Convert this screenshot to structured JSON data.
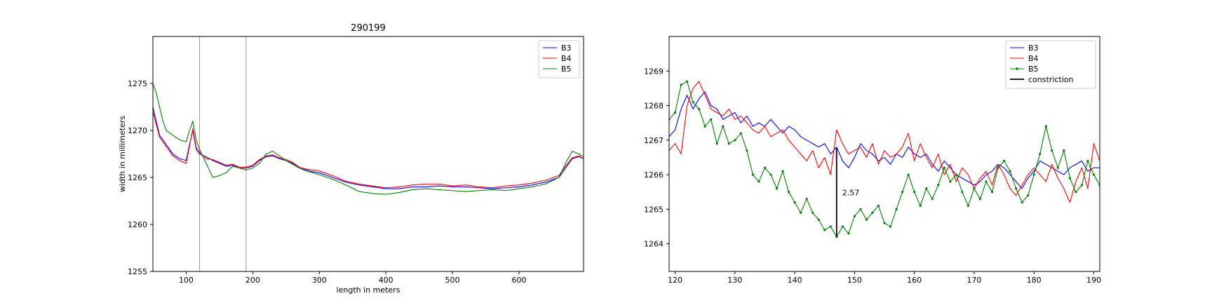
{
  "chart_data": [
    {
      "type": "line",
      "title": "290199",
      "xlabel": "length in meters",
      "ylabel": "width in millimeters",
      "xlim": [
        50,
        697
      ],
      "ylim": [
        1255,
        1280
      ],
      "xticks": [
        100,
        200,
        300,
        400,
        500,
        600
      ],
      "yticks": [
        1255,
        1260,
        1265,
        1270,
        1275
      ],
      "grid": false,
      "legend_position": "top-right",
      "vlines": [
        120,
        190
      ],
      "series": [
        {
          "name": "B3",
          "color": "#0000ff",
          "x": [
            50,
            60,
            70,
            80,
            90,
            100,
            105,
            110,
            115,
            120,
            130,
            140,
            150,
            160,
            170,
            180,
            190,
            200,
            210,
            220,
            230,
            240,
            250,
            260,
            270,
            280,
            290,
            300,
            320,
            340,
            360,
            380,
            400,
            420,
            440,
            460,
            480,
            500,
            520,
            540,
            560,
            580,
            600,
            620,
            640,
            660,
            670,
            680,
            690,
            697
          ],
          "values": [
            1272.5,
            1269.5,
            1268.5,
            1267.5,
            1267.0,
            1266.8,
            1268.5,
            1270.0,
            1268.0,
            1267.5,
            1267.2,
            1266.8,
            1266.5,
            1266.2,
            1266.3,
            1266.0,
            1266.0,
            1266.2,
            1266.8,
            1267.2,
            1267.3,
            1267.0,
            1266.8,
            1266.5,
            1266.0,
            1265.8,
            1265.6,
            1265.5,
            1265.0,
            1264.5,
            1264.2,
            1264.0,
            1263.8,
            1263.8,
            1264.0,
            1264.0,
            1264.1,
            1264.0,
            1264.0,
            1263.9,
            1263.8,
            1263.9,
            1264.0,
            1264.2,
            1264.5,
            1265.0,
            1266.0,
            1267.0,
            1267.2,
            1267.0
          ]
        },
        {
          "name": "B4",
          "color": "#ff0000",
          "x": [
            50,
            60,
            70,
            80,
            90,
            100,
            105,
            110,
            115,
            120,
            130,
            140,
            150,
            160,
            170,
            180,
            190,
            200,
            210,
            220,
            230,
            240,
            250,
            260,
            270,
            280,
            290,
            300,
            320,
            340,
            360,
            380,
            400,
            420,
            440,
            460,
            480,
            500,
            520,
            540,
            560,
            580,
            600,
            620,
            640,
            660,
            670,
            680,
            690,
            697
          ],
          "values": [
            1272.0,
            1269.3,
            1268.3,
            1267.3,
            1266.8,
            1266.5,
            1268.3,
            1270.2,
            1268.2,
            1267.7,
            1267.0,
            1266.9,
            1266.6,
            1266.3,
            1266.4,
            1266.1,
            1266.1,
            1266.3,
            1266.9,
            1267.3,
            1267.4,
            1267.1,
            1266.9,
            1266.6,
            1266.1,
            1265.9,
            1265.8,
            1265.7,
            1265.2,
            1264.6,
            1264.3,
            1264.1,
            1263.9,
            1264.0,
            1264.2,
            1264.3,
            1264.3,
            1264.1,
            1264.2,
            1264.0,
            1263.9,
            1264.1,
            1264.2,
            1264.4,
            1264.7,
            1265.2,
            1266.2,
            1267.1,
            1267.3,
            1267.0
          ]
        },
        {
          "name": "B5",
          "color": "#008000",
          "x": [
            50,
            55,
            60,
            65,
            70,
            80,
            90,
            100,
            105,
            110,
            115,
            120,
            130,
            140,
            150,
            160,
            170,
            180,
            190,
            200,
            210,
            220,
            230,
            240,
            250,
            260,
            270,
            280,
            290,
            300,
            320,
            340,
            360,
            380,
            400,
            420,
            440,
            460,
            480,
            500,
            520,
            540,
            560,
            580,
            600,
            620,
            640,
            660,
            670,
            680,
            690,
            697
          ],
          "values": [
            1275.0,
            1274.0,
            1272.5,
            1271.0,
            1270.0,
            1269.5,
            1269.0,
            1268.8,
            1270.0,
            1271.0,
            1269.0,
            1268.0,
            1266.5,
            1265.0,
            1265.2,
            1265.5,
            1266.2,
            1266.0,
            1265.8,
            1266.0,
            1266.5,
            1267.5,
            1267.8,
            1267.3,
            1266.8,
            1266.4,
            1266.0,
            1265.7,
            1265.5,
            1265.3,
            1264.8,
            1264.2,
            1263.5,
            1263.3,
            1263.2,
            1263.4,
            1263.7,
            1263.8,
            1263.7,
            1263.6,
            1263.5,
            1263.6,
            1263.7,
            1263.6,
            1263.8,
            1264.0,
            1264.3,
            1265.0,
            1266.5,
            1267.8,
            1267.5,
            1267.2
          ]
        }
      ]
    },
    {
      "type": "line",
      "xlim": [
        119,
        191
      ],
      "ylim": [
        1263.2,
        1270.0
      ],
      "xticks": [
        120,
        130,
        140,
        150,
        160,
        170,
        180,
        190
      ],
      "yticks": [
        1264,
        1265,
        1266,
        1267,
        1268,
        1269
      ],
      "grid": false,
      "legend_position": "top-right",
      "constriction": {
        "x": 147,
        "y_from": 1264.2,
        "y_to": 1266.77,
        "label": "2.57",
        "color": "#000000"
      },
      "series": [
        {
          "name": "B3",
          "color": "#0000ff",
          "markers": false,
          "x": [
            119,
            120,
            121,
            122,
            123,
            124,
            125,
            126,
            127,
            128,
            129,
            130,
            131,
            132,
            133,
            134,
            135,
            136,
            137,
            138,
            139,
            140,
            141,
            142,
            143,
            144,
            145,
            146,
            147,
            148,
            149,
            150,
            151,
            152,
            153,
            154,
            155,
            156,
            157,
            158,
            159,
            160,
            161,
            162,
            163,
            164,
            165,
            166,
            167,
            168,
            169,
            170,
            171,
            172,
            173,
            174,
            175,
            176,
            177,
            178,
            179,
            180,
            181,
            182,
            183,
            184,
            185,
            186,
            187,
            188,
            189,
            190,
            191
          ],
          "values": [
            1267.1,
            1267.3,
            1267.9,
            1268.3,
            1267.9,
            1268.2,
            1268.4,
            1268.0,
            1267.9,
            1267.6,
            1267.7,
            1267.8,
            1267.5,
            1267.7,
            1267.4,
            1267.5,
            1267.4,
            1267.6,
            1267.4,
            1267.2,
            1267.4,
            1267.3,
            1267.1,
            1267.0,
            1266.9,
            1266.8,
            1266.9,
            1266.6,
            1266.8,
            1266.4,
            1266.2,
            1266.5,
            1266.9,
            1266.7,
            1266.6,
            1266.4,
            1266.5,
            1266.3,
            1266.6,
            1266.5,
            1266.8,
            1266.6,
            1266.5,
            1266.6,
            1266.3,
            1266.1,
            1266.4,
            1266.2,
            1266.0,
            1265.9,
            1265.8,
            1265.7,
            1265.8,
            1266.0,
            1266.1,
            1266.3,
            1266.2,
            1266.0,
            1265.8,
            1265.6,
            1265.9,
            1266.1,
            1266.4,
            1266.3,
            1266.2,
            1266.1,
            1266.0,
            1266.2,
            1266.3,
            1266.4,
            1266.1,
            1266.2,
            1266.2
          ]
        },
        {
          "name": "B4",
          "color": "#ff0000",
          "markers": false,
          "x": [
            119,
            120,
            121,
            122,
            123,
            124,
            125,
            126,
            127,
            128,
            129,
            130,
            131,
            132,
            133,
            134,
            135,
            136,
            137,
            138,
            139,
            140,
            141,
            142,
            143,
            144,
            145,
            146,
            147,
            148,
            149,
            150,
            151,
            152,
            153,
            154,
            155,
            156,
            157,
            158,
            159,
            160,
            161,
            162,
            163,
            164,
            165,
            166,
            167,
            168,
            169,
            170,
            171,
            172,
            173,
            174,
            175,
            176,
            177,
            178,
            179,
            180,
            181,
            182,
            183,
            184,
            185,
            186,
            187,
            188,
            189,
            190,
            191
          ],
          "values": [
            1266.7,
            1266.9,
            1266.6,
            1268.0,
            1268.5,
            1268.7,
            1268.3,
            1267.9,
            1267.8,
            1267.7,
            1267.9,
            1267.6,
            1267.7,
            1267.5,
            1267.3,
            1267.2,
            1267.4,
            1267.1,
            1267.2,
            1267.3,
            1267.0,
            1266.8,
            1266.6,
            1266.4,
            1266.7,
            1266.2,
            1266.5,
            1266.0,
            1267.3,
            1266.9,
            1266.6,
            1266.7,
            1266.8,
            1266.5,
            1266.9,
            1266.3,
            1266.7,
            1266.5,
            1266.6,
            1266.8,
            1267.2,
            1266.4,
            1266.9,
            1266.5,
            1266.2,
            1266.6,
            1266.0,
            1266.3,
            1265.8,
            1266.2,
            1266.0,
            1265.6,
            1265.9,
            1266.1,
            1265.7,
            1266.3,
            1266.0,
            1265.6,
            1265.4,
            1265.7,
            1266.0,
            1266.2,
            1266.0,
            1265.8,
            1266.3,
            1265.9,
            1265.6,
            1265.2,
            1265.8,
            1266.2,
            1265.6,
            1266.9,
            1266.4
          ]
        },
        {
          "name": "B5",
          "color": "#008000",
          "markers": true,
          "x": [
            119,
            120,
            121,
            122,
            123,
            124,
            125,
            126,
            127,
            128,
            129,
            130,
            131,
            132,
            133,
            134,
            135,
            136,
            137,
            138,
            139,
            140,
            141,
            142,
            143,
            144,
            145,
            146,
            147,
            148,
            149,
            150,
            151,
            152,
            153,
            154,
            155,
            156,
            157,
            158,
            159,
            160,
            161,
            162,
            163,
            164,
            165,
            166,
            167,
            168,
            169,
            170,
            171,
            172,
            173,
            174,
            175,
            176,
            177,
            178,
            179,
            180,
            181,
            182,
            183,
            184,
            185,
            186,
            187,
            188,
            189,
            190,
            191
          ],
          "values": [
            1267.6,
            1267.8,
            1268.6,
            1268.7,
            1268.1,
            1267.9,
            1267.4,
            1267.6,
            1266.9,
            1267.4,
            1266.9,
            1267.0,
            1267.2,
            1266.7,
            1266.0,
            1265.8,
            1266.2,
            1266.0,
            1265.6,
            1266.1,
            1265.5,
            1265.2,
            1264.9,
            1265.3,
            1264.9,
            1264.7,
            1264.4,
            1264.5,
            1264.2,
            1264.5,
            1264.3,
            1264.8,
            1265.0,
            1264.7,
            1264.9,
            1265.1,
            1264.6,
            1264.5,
            1265.0,
            1265.5,
            1266.0,
            1265.5,
            1265.1,
            1265.6,
            1265.3,
            1265.7,
            1266.2,
            1265.8,
            1266.0,
            1265.5,
            1265.1,
            1265.6,
            1265.3,
            1265.8,
            1265.5,
            1266.2,
            1266.4,
            1266.1,
            1265.6,
            1265.2,
            1265.4,
            1266.0,
            1266.6,
            1267.4,
            1266.7,
            1266.2,
            1266.7,
            1265.9,
            1265.5,
            1265.7,
            1266.4,
            1266.0,
            1265.7
          ]
        },
        {
          "name": "constriction",
          "color": "#000000",
          "legend_only": true,
          "x": [],
          "values": []
        }
      ]
    }
  ]
}
